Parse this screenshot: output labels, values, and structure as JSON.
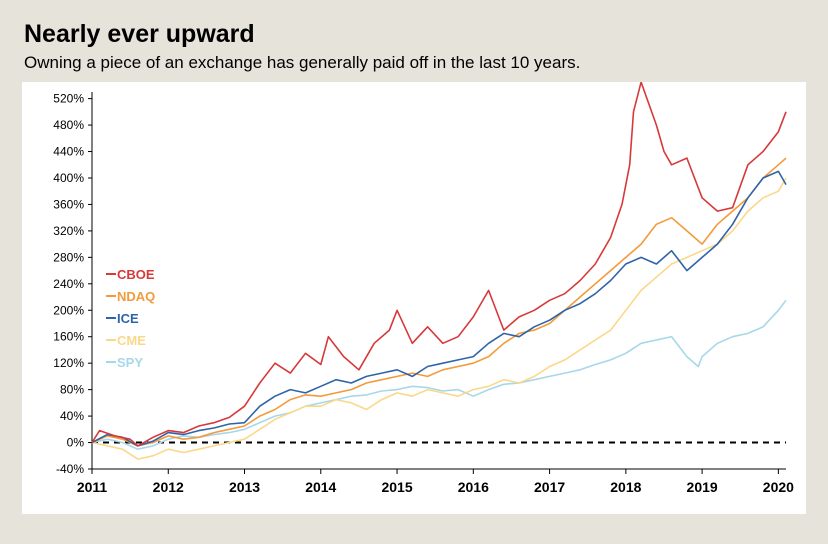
{
  "title": "Nearly ever upward",
  "subtitle": "Owning a piece of an exchange has generally paid off in the last 10 years.",
  "chart_data": {
    "type": "line",
    "title": "",
    "xlabel": "",
    "ylabel": "",
    "xlim": [
      2011,
      2020.1
    ],
    "ylim": [
      -40,
      530
    ],
    "x_ticks": [
      "2011",
      "2012",
      "2013",
      "2014",
      "2015",
      "2016",
      "2017",
      "2018",
      "2019",
      "2020"
    ],
    "y_ticks": [
      "-40%",
      "0%",
      "40%",
      "80%",
      "120%",
      "160%",
      "200%",
      "240%",
      "280%",
      "320%",
      "360%",
      "400%",
      "440%",
      "480%",
      "520%"
    ],
    "y_tick_values": [
      -40,
      0,
      40,
      80,
      120,
      160,
      200,
      240,
      280,
      320,
      360,
      400,
      440,
      480,
      520
    ],
    "zero_line": 0,
    "grid": false,
    "legend_position": "left",
    "series": [
      {
        "name": "CBOE",
        "color": "#d7393a",
        "x": [
          2011,
          2011.1,
          2011.3,
          2011.5,
          2011.6,
          2011.8,
          2012,
          2012.2,
          2012.4,
          2012.6,
          2012.8,
          2013,
          2013.2,
          2013.4,
          2013.6,
          2013.8,
          2014,
          2014.1,
          2014.3,
          2014.5,
          2014.7,
          2014.9,
          2015,
          2015.2,
          2015.4,
          2015.6,
          2015.8,
          2016,
          2016.2,
          2016.4,
          2016.6,
          2016.8,
          2017,
          2017.2,
          2017.4,
          2017.6,
          2017.8,
          2017.95,
          2018.05,
          2018.1,
          2018.2,
          2018.4,
          2018.5,
          2018.6,
          2018.8,
          2019,
          2019.2,
          2019.4,
          2019.6,
          2019.8,
          2020,
          2020.1
        ],
        "y": [
          0,
          18,
          10,
          5,
          -5,
          8,
          18,
          15,
          25,
          30,
          38,
          55,
          90,
          120,
          105,
          135,
          118,
          160,
          130,
          110,
          150,
          170,
          200,
          150,
          175,
          150,
          160,
          190,
          230,
          170,
          190,
          200,
          215,
          225,
          245,
          270,
          310,
          360,
          420,
          500,
          545,
          480,
          440,
          420,
          430,
          370,
          350,
          355,
          420,
          440,
          470,
          500
        ]
      },
      {
        "name": "NDAQ",
        "color": "#f39a3b",
        "x": [
          2011,
          2011.2,
          2011.4,
          2011.6,
          2011.8,
          2012,
          2012.2,
          2012.4,
          2012.6,
          2012.8,
          2013,
          2013.2,
          2013.4,
          2013.6,
          2013.8,
          2014,
          2014.2,
          2014.4,
          2014.6,
          2014.8,
          2015,
          2015.2,
          2015.4,
          2015.6,
          2015.8,
          2016,
          2016.2,
          2016.4,
          2016.6,
          2016.8,
          2017,
          2017.2,
          2017.4,
          2017.6,
          2017.8,
          2018,
          2018.2,
          2018.4,
          2018.6,
          2018.8,
          2019,
          2019.2,
          2019.4,
          2019.6,
          2019.8,
          2020,
          2020.1
        ],
        "y": [
          0,
          10,
          5,
          -5,
          0,
          10,
          5,
          8,
          15,
          20,
          25,
          40,
          50,
          65,
          72,
          70,
          75,
          80,
          90,
          95,
          100,
          105,
          100,
          110,
          115,
          120,
          130,
          150,
          165,
          170,
          180,
          200,
          220,
          240,
          260,
          280,
          300,
          330,
          340,
          320,
          300,
          330,
          350,
          370,
          400,
          420,
          430
        ]
      },
      {
        "name": "ICE",
        "color": "#2f64a8",
        "x": [
          2011,
          2011.2,
          2011.4,
          2011.6,
          2011.8,
          2012,
          2012.2,
          2012.4,
          2012.6,
          2012.8,
          2013,
          2013.2,
          2013.4,
          2013.6,
          2013.8,
          2014,
          2014.2,
          2014.4,
          2014.6,
          2014.8,
          2015,
          2015.2,
          2015.4,
          2015.6,
          2015.8,
          2016,
          2016.2,
          2016.4,
          2016.6,
          2016.8,
          2017,
          2017.2,
          2017.4,
          2017.6,
          2017.8,
          2018,
          2018.2,
          2018.4,
          2018.6,
          2018.8,
          2019,
          2019.2,
          2019.4,
          2019.6,
          2019.8,
          2020,
          2020.1
        ],
        "y": [
          0,
          12,
          8,
          -5,
          2,
          15,
          12,
          18,
          22,
          28,
          30,
          55,
          70,
          80,
          75,
          85,
          95,
          90,
          100,
          105,
          110,
          100,
          115,
          120,
          125,
          130,
          150,
          165,
          160,
          175,
          185,
          200,
          210,
          225,
          245,
          270,
          280,
          270,
          290,
          260,
          280,
          300,
          330,
          370,
          400,
          410,
          390
        ]
      },
      {
        "name": "CME",
        "color": "#fbd889",
        "x": [
          2011,
          2011.2,
          2011.4,
          2011.6,
          2011.8,
          2012,
          2012.2,
          2012.4,
          2012.6,
          2012.8,
          2013,
          2013.2,
          2013.4,
          2013.6,
          2013.8,
          2014,
          2014.2,
          2014.4,
          2014.6,
          2014.8,
          2015,
          2015.2,
          2015.4,
          2015.6,
          2015.8,
          2016,
          2016.2,
          2016.4,
          2016.6,
          2016.8,
          2017,
          2017.2,
          2017.4,
          2017.6,
          2017.8,
          2018,
          2018.2,
          2018.4,
          2018.6,
          2018.8,
          2019,
          2019.2,
          2019.4,
          2019.6,
          2019.8,
          2020,
          2020.1
        ],
        "y": [
          0,
          -5,
          -10,
          -25,
          -20,
          -10,
          -15,
          -10,
          -5,
          0,
          5,
          20,
          35,
          45,
          55,
          55,
          65,
          60,
          50,
          65,
          75,
          70,
          80,
          75,
          70,
          80,
          85,
          95,
          90,
          100,
          115,
          125,
          140,
          155,
          170,
          200,
          230,
          250,
          270,
          280,
          290,
          300,
          320,
          350,
          370,
          380,
          400
        ]
      },
      {
        "name": "SPY",
        "color": "#a7d7ea",
        "x": [
          2011,
          2011.2,
          2011.4,
          2011.6,
          2011.8,
          2012,
          2012.2,
          2012.4,
          2012.6,
          2012.8,
          2013,
          2013.2,
          2013.4,
          2013.6,
          2013.8,
          2014,
          2014.2,
          2014.4,
          2014.6,
          2014.8,
          2015,
          2015.2,
          2015.4,
          2015.6,
          2015.8,
          2016,
          2016.2,
          2016.4,
          2016.6,
          2016.8,
          2017,
          2017.2,
          2017.4,
          2017.6,
          2017.8,
          2018,
          2018.2,
          2018.4,
          2018.6,
          2018.8,
          2018.95,
          2019,
          2019.2,
          2019.4,
          2019.6,
          2019.8,
          2020,
          2020.1
        ],
        "y": [
          0,
          5,
          0,
          -10,
          -5,
          5,
          10,
          8,
          12,
          15,
          20,
          30,
          40,
          45,
          55,
          60,
          65,
          70,
          72,
          78,
          80,
          85,
          83,
          78,
          80,
          70,
          80,
          88,
          90,
          95,
          100,
          105,
          110,
          118,
          125,
          135,
          150,
          155,
          160,
          130,
          115,
          130,
          150,
          160,
          165,
          175,
          200,
          215
        ]
      }
    ]
  }
}
